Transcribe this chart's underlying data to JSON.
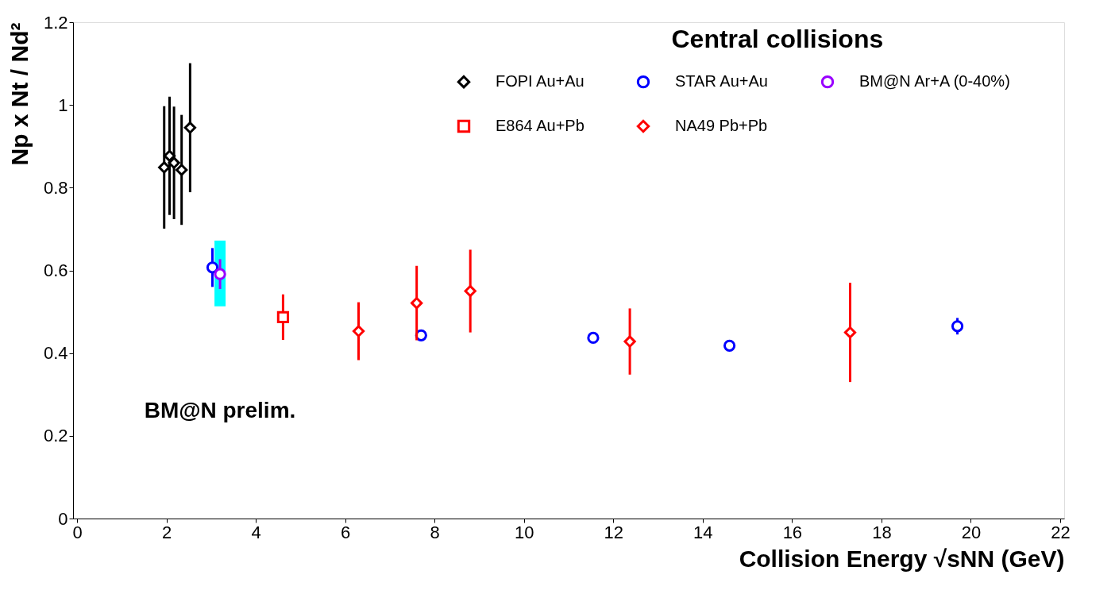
{
  "chart_data": {
    "type": "scatter",
    "title": "Central collisions",
    "xlabel": "Collision Energy  √sNN (GeV)",
    "ylabel": "Np x Nt / Nd²",
    "xlim": [
      0,
      22
    ],
    "xticks": [
      0,
      2,
      4,
      6,
      8,
      10,
      12,
      14,
      16,
      18,
      20,
      22
    ],
    "ylim": [
      0,
      1.2
    ],
    "yticks": [
      0,
      0.2,
      0.4,
      0.6,
      0.8,
      1,
      1.2
    ],
    "grid": false,
    "legend": "top right",
    "annotations": [
      "BM@N prelim."
    ],
    "series": [
      {
        "type": "bar",
        "color": "#00ffff",
        "x": [
          3.2
        ],
        "base": [
          0.513
        ],
        "values": [
          0.159
        ]
      },
      {
        "name": "FOPI Au+Au",
        "color": "#000000",
        "marker": "diamond",
        "x": [
          1.95,
          2.07,
          2.17,
          2.34,
          2.53
        ],
        "values": [
          0.849,
          0.877,
          0.86,
          0.843,
          0.945
        ],
        "errors": [
          0.148,
          0.143,
          0.136,
          0.133,
          0.156
        ]
      },
      {
        "name": "STAR Au+Au",
        "color": "#0000ff",
        "marker": "circle",
        "x": [
          3.03,
          7.7,
          11.55,
          14.6,
          19.7
        ],
        "values": [
          0.607,
          0.443,
          0.437,
          0.418,
          0.465
        ],
        "errors": [
          0.047,
          0.01,
          0.01,
          0.01,
          0.02
        ]
      },
      {
        "name": "BM@N Ar+A (0-40%)",
        "color": "#9900ff",
        "marker": "circle",
        "x": [
          3.2
        ],
        "values": [
          0.591
        ],
        "errors": [
          0.036
        ]
      },
      {
        "name": "E864 Au+Pb",
        "color": "#ff0000",
        "marker": "square",
        "x": [
          4.61
        ],
        "values": [
          0.487
        ],
        "errors": [
          0.055
        ]
      },
      {
        "name": "NA49 Pb+Pb",
        "color": "#ff0000",
        "marker": "diamond",
        "x": [
          6.3,
          7.6,
          8.8,
          12.37,
          17.3
        ],
        "values": [
          0.453,
          0.521,
          0.55,
          0.428,
          0.45
        ],
        "errors": [
          0.07,
          0.09,
          0.1,
          0.08,
          0.12
        ]
      }
    ]
  }
}
